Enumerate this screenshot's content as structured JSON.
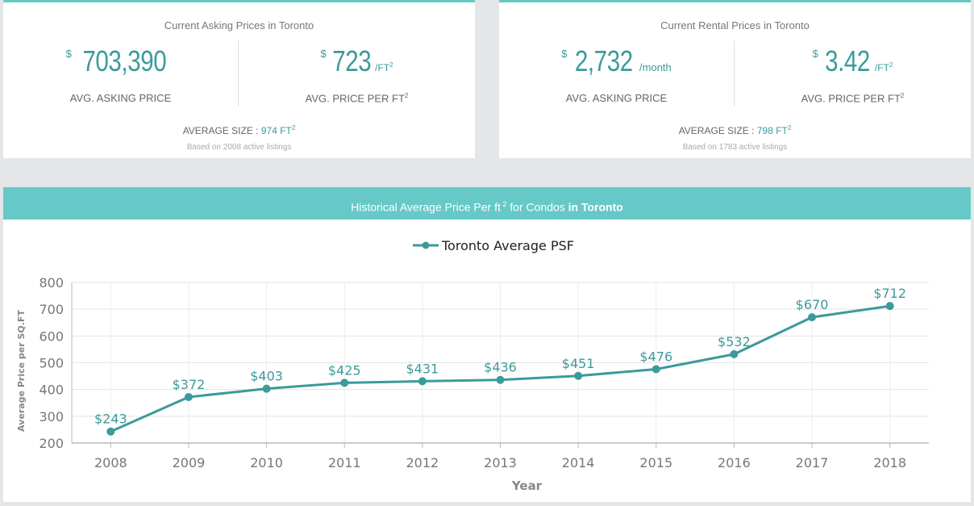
{
  "asking_card": {
    "title": "Current Asking Prices in Toronto",
    "avg_price": {
      "currency": "$",
      "value": "703,390",
      "label": "AVG. ASKING PRICE"
    },
    "price_per_ft": {
      "currency": "$",
      "value": "723",
      "unit": "/FT",
      "label": "AVG. PRICE PER FT"
    },
    "avg_size_label": "AVERAGE SIZE :",
    "avg_size_value": "974 FT",
    "based_on": "Based on 2008 active listings"
  },
  "rental_card": {
    "title": "Current Rental Prices in Toronto",
    "avg_price": {
      "currency": "$",
      "value": "2,732",
      "unit": "/month",
      "label": "AVG. ASKING PRICE"
    },
    "price_per_ft": {
      "currency": "$",
      "value": "3.42",
      "unit": "/FT",
      "label": "AVG. PRICE PER FT"
    },
    "avg_size_label": "AVERAGE SIZE :",
    "avg_size_value": "798 FT",
    "based_on": "Based on 1783 active listings"
  },
  "chart_header": {
    "prefix": "Historical Average Price Per ft",
    "middle": " for Condos ",
    "city": "in Toronto"
  },
  "colors": {
    "accent": "#66c9c8",
    "series": "#3c9a9b"
  },
  "chart_data": {
    "type": "line",
    "x": [
      "2008",
      "2009",
      "2010",
      "2011",
      "2012",
      "2013",
      "2014",
      "2015",
      "2016",
      "2017",
      "2018"
    ],
    "series": [
      {
        "name": "Toronto Average PSF",
        "values": [
          243,
          372,
          403,
          425,
          431,
          436,
          451,
          476,
          532,
          670,
          712
        ]
      }
    ],
    "data_labels": [
      "$243",
      "$372",
      "$403",
      "$425",
      "$431",
      "$436",
      "$451",
      "$476",
      "$532",
      "$670",
      "$712"
    ],
    "xlabel": "Year",
    "ylabel": "Average Price per SQ.FT",
    "ylim": [
      200,
      800
    ],
    "yticks": [
      200,
      300,
      400,
      500,
      600,
      700,
      800
    ],
    "grid": true,
    "legend": "top-center"
  }
}
